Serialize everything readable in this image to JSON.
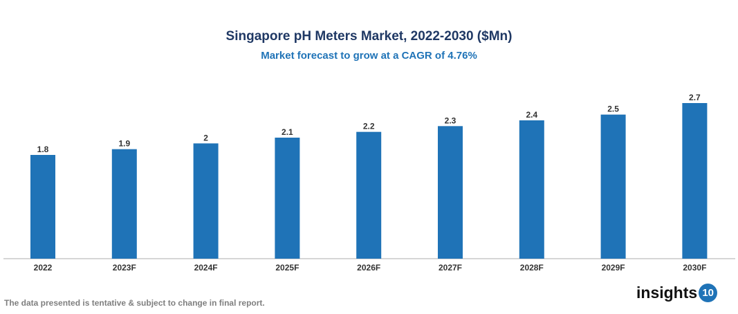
{
  "chart_data": {
    "type": "bar",
    "title": "Singapore pH Meters Market, 2022-2030 ($Mn)",
    "subtitle": "Market forecast to grow at a CAGR of 4.76%",
    "categories": [
      "2022",
      "2023F",
      "2024F",
      "2025F",
      "2026F",
      "2027F",
      "2028F",
      "2029F",
      "2030F"
    ],
    "values": [
      1.8,
      1.9,
      2,
      2.1,
      2.2,
      2.3,
      2.4,
      2.5,
      2.7
    ],
    "data_labels": [
      "1.8",
      "1.9",
      "2",
      "2.1",
      "2.2",
      "2.3",
      "2.4",
      "2.5",
      "2.7"
    ],
    "xlabel": "",
    "ylabel": "",
    "ylim": [
      0,
      2.7
    ],
    "grid": false,
    "y_axis_visible": false,
    "bar_color": "#1f73b7"
  },
  "footnote": "The data presented is tentative & subject to change in final report.",
  "logo": {
    "text": "insights",
    "badge": "10"
  }
}
